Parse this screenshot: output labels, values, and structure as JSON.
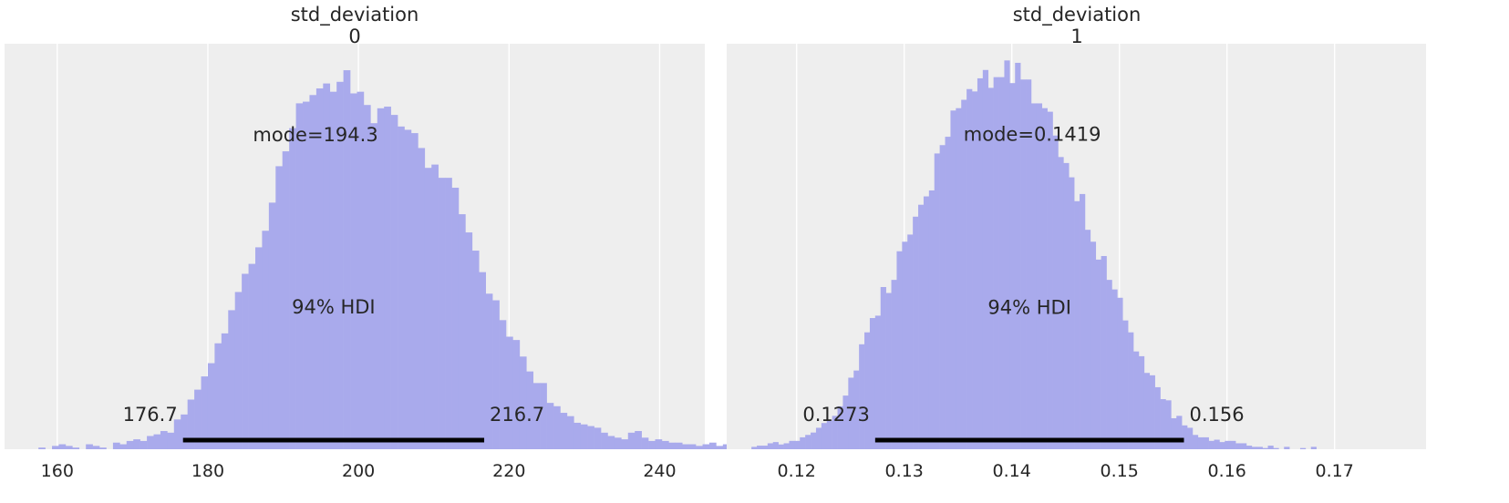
{
  "chart_data": [
    {
      "type": "histogram",
      "title_line1": "std_deviation",
      "title_line2": "0",
      "xlim": [
        153,
        246
      ],
      "ylim": [
        0,
        245
      ],
      "x_ticks": [
        160,
        180,
        200,
        220,
        240
      ],
      "tick_labels": [
        "160",
        "180",
        "200",
        "220",
        "240"
      ],
      "grid": true,
      "bin_edges_start": 157.5,
      "bin_width": 0.9,
      "counts": [
        1,
        0,
        2,
        3,
        2,
        1,
        0,
        3,
        2,
        1,
        0,
        4,
        3,
        5,
        6,
        5,
        8,
        9,
        11,
        10,
        18,
        21,
        30,
        36,
        44,
        52,
        64,
        70,
        84,
        95,
        106,
        112,
        122,
        132,
        149,
        171,
        180,
        194,
        209,
        210,
        214,
        218,
        221,
        216,
        222,
        229,
        215,
        216,
        208,
        197,
        206,
        207,
        202,
        195,
        193,
        191,
        182,
        170,
        172,
        164,
        164,
        158,
        142,
        131,
        120,
        107,
        94,
        90,
        78,
        68,
        66,
        56,
        47,
        40,
        40,
        28,
        26,
        22,
        20,
        16,
        15,
        14,
        13,
        10,
        8,
        7,
        6,
        10,
        11,
        7,
        5,
        6,
        5,
        4,
        4,
        3,
        3,
        2,
        3,
        4,
        2,
        3,
        1,
        2,
        1
      ],
      "mode_label": "mode=194.3",
      "mode_label_x": 194.3,
      "mode_label_y": 190,
      "hdi_label": "94% HDI",
      "hdi_label_y": 86,
      "hdi_low": 176.7,
      "hdi_high": 216.7,
      "hdi_low_label": "176.7",
      "hdi_high_label": "216.7",
      "bar_color": "#a9aaec",
      "bg_color": "#eeeeee"
    },
    {
      "type": "histogram",
      "title_line1": "std_deviation",
      "title_line2": "1",
      "xlim": [
        0.1135,
        0.1785
      ],
      "ylim": [
        0,
        340
      ],
      "x_ticks": [
        0.12,
        0.13,
        0.14,
        0.15,
        0.16,
        0.17
      ],
      "tick_labels": [
        "0.12",
        "0.13",
        "0.14",
        "0.15",
        "0.16",
        "0.17"
      ],
      "grid": true,
      "bin_edges_start": 0.1158,
      "bin_width": 0.0005,
      "counts": [
        2,
        3,
        3,
        5,
        6,
        4,
        5,
        7,
        7,
        10,
        12,
        14,
        18,
        22,
        24,
        28,
        36,
        45,
        60,
        66,
        88,
        98,
        110,
        112,
        136,
        131,
        142,
        166,
        174,
        180,
        195,
        205,
        212,
        217,
        248,
        255,
        262,
        284,
        286,
        293,
        302,
        300,
        311,
        318,
        303,
        312,
        312,
        326,
        307,
        324,
        310,
        310,
        290,
        290,
        286,
        283,
        263,
        245,
        240,
        228,
        208,
        214,
        184,
        174,
        159,
        162,
        142,
        134,
        127,
        108,
        98,
        82,
        78,
        64,
        62,
        52,
        42,
        41,
        26,
        28,
        20,
        18,
        12,
        10,
        10,
        7,
        8,
        6,
        7,
        7,
        5,
        5,
        3,
        2,
        2,
        1,
        3,
        1,
        0,
        2,
        0,
        0,
        1,
        0,
        2
      ],
      "mode_label": "mode=0.1419",
      "mode_label_x": 0.1419,
      "mode_label_y": 264,
      "hdi_label": "94% HDI",
      "hdi_label_y": 119,
      "hdi_low": 0.1273,
      "hdi_high": 0.156,
      "hdi_low_label": "0.1273",
      "hdi_high_label": "0.156",
      "bar_color": "#a9aaec",
      "bg_color": "#eeeeee"
    }
  ]
}
